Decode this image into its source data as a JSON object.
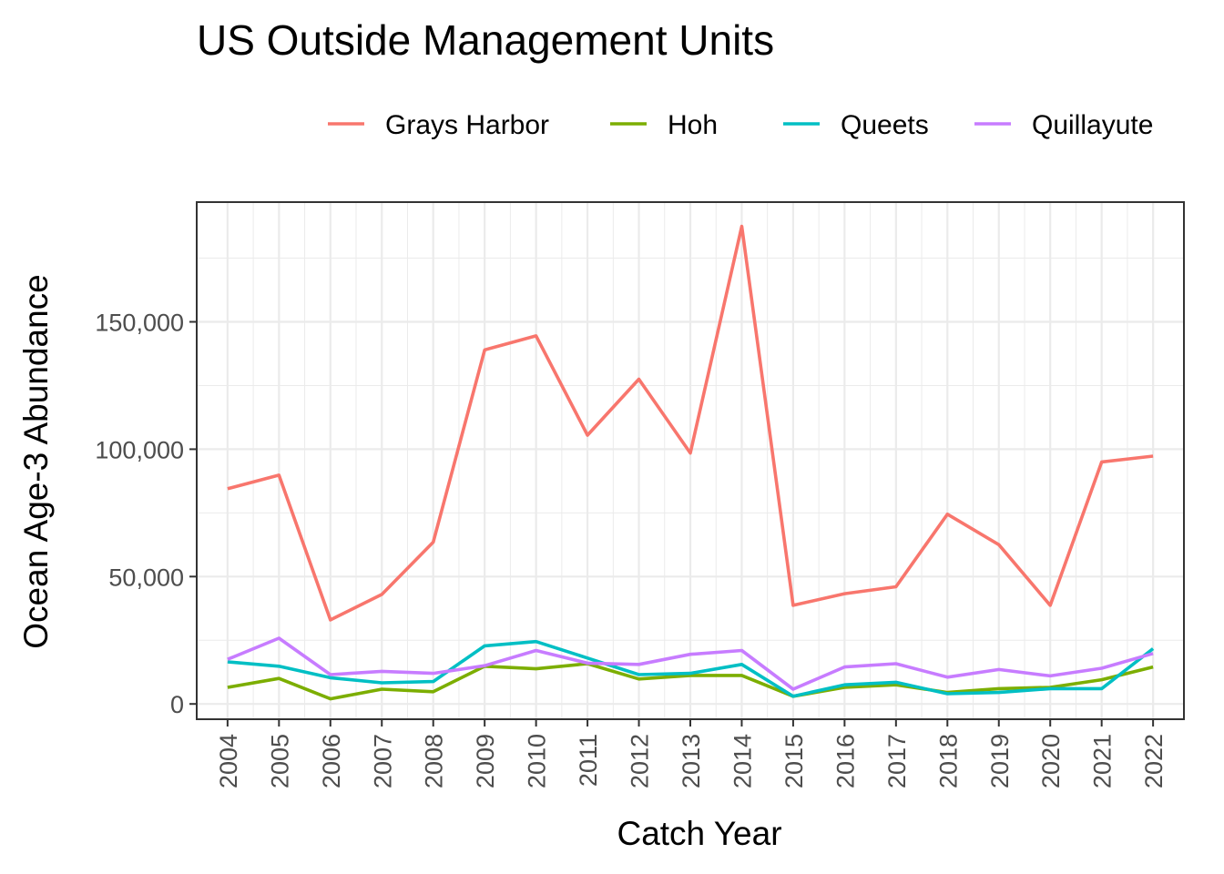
{
  "chart_data": {
    "type": "line",
    "title": "US Outside Management Units",
    "xlabel": "Catch Year",
    "ylabel": "Ocean Age-3 Abundance",
    "x": [
      "2004",
      "2005",
      "2006",
      "2007",
      "2008",
      "2009",
      "2010",
      "2011",
      "2012",
      "2013",
      "2014",
      "2015",
      "2016",
      "2017",
      "2018",
      "2019",
      "2020",
      "2021",
      "2022"
    ],
    "ylim": [
      -6000,
      197000
    ],
    "yticks": [
      0,
      50000,
      100000,
      150000
    ],
    "ytick_labels": [
      "0",
      "50,000",
      "100,000",
      "150,000"
    ],
    "grid": true,
    "legend_position": "top",
    "series": [
      {
        "name": "Grays Harbor",
        "color": "#F8766D",
        "values": [
          84500,
          89800,
          33000,
          43000,
          63500,
          139000,
          144500,
          105500,
          127500,
          98500,
          187500,
          38700,
          43300,
          46000,
          74500,
          62500,
          38700,
          95000,
          97300
        ]
      },
      {
        "name": "Hoh",
        "color": "#7CAE00",
        "values": [
          6500,
          10000,
          2000,
          5800,
          4800,
          14800,
          13800,
          15800,
          9800,
          11200,
          11200,
          3000,
          6500,
          7500,
          4500,
          6000,
          6500,
          9500,
          14500
        ]
      },
      {
        "name": "Queets",
        "color": "#00BFC4",
        "values": [
          16500,
          14800,
          10300,
          8300,
          8800,
          22800,
          24500,
          18000,
          11500,
          12000,
          15500,
          3000,
          7500,
          8500,
          4000,
          4500,
          6000,
          6000,
          21700
        ]
      },
      {
        "name": "Quillayute",
        "color": "#C77CFF",
        "values": [
          17500,
          25800,
          11500,
          12800,
          12000,
          15000,
          21000,
          16000,
          15500,
          19500,
          21000,
          5800,
          14500,
          15800,
          10500,
          13500,
          11000,
          14000,
          19800
        ]
      }
    ]
  }
}
